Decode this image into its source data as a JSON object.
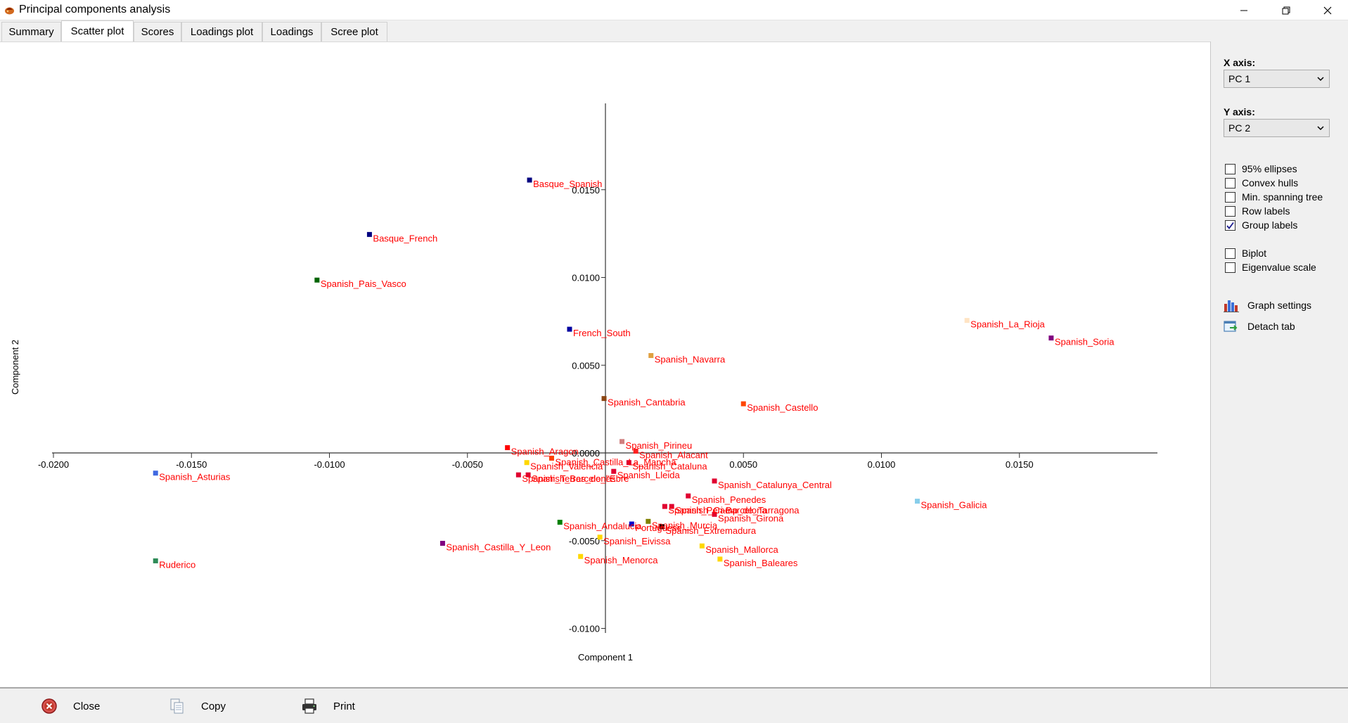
{
  "window": {
    "title": "Principal components analysis",
    "icon": "app-logo-icon"
  },
  "tabs": [
    {
      "label": "Summary",
      "active": false
    },
    {
      "label": "Scatter plot",
      "active": true
    },
    {
      "label": "Scores",
      "active": false
    },
    {
      "label": "Loadings plot",
      "active": false
    },
    {
      "label": "Loadings",
      "active": false
    },
    {
      "label": "Scree plot",
      "active": false
    }
  ],
  "side_panel": {
    "x_axis_label": "X axis:",
    "x_axis_value": "PC 1",
    "y_axis_label": "Y axis:",
    "y_axis_value": "PC 2",
    "options": [
      {
        "label": "95% ellipses",
        "checked": false
      },
      {
        "label": "Convex hulls",
        "checked": false
      },
      {
        "label": "Min. spanning tree",
        "checked": false
      },
      {
        "label": "Row labels",
        "checked": false
      },
      {
        "label": "Group labels",
        "checked": true
      },
      {
        "label": "Biplot",
        "checked": false
      },
      {
        "label": "Eigenvalue scale",
        "checked": false
      }
    ],
    "graph_settings_label": "Graph settings",
    "detach_tab_label": "Detach tab"
  },
  "bottom_bar": {
    "close_label": "Close",
    "copy_label": "Copy",
    "print_label": "Print"
  },
  "chart_data": {
    "type": "scatter",
    "xlabel": "Component 1",
    "ylabel": "Component 2",
    "xlim": [
      -0.02,
      0.02
    ],
    "ylim": [
      -0.01,
      0.015
    ],
    "xticks": [
      -0.02,
      -0.015,
      -0.01,
      -0.005,
      0.005,
      0.01,
      0.015
    ],
    "xtick_labels": [
      "-0.0200",
      "-0.0150",
      "-0.0100",
      "-0.0050",
      "0.0050",
      "0.0100",
      "0.0150"
    ],
    "yticks": [
      0.015,
      0.01,
      0.005,
      0.0,
      -0.005,
      -0.01
    ],
    "ytick_labels": [
      "0.0150",
      "0.0100",
      "0.0050",
      "0.0000",
      "-0.0050",
      "-0.0100"
    ],
    "label_color": "#ff0000",
    "points": [
      {
        "label": "Basque_Spanish",
        "x": -0.00275,
        "y": 0.01555,
        "color": "#000080"
      },
      {
        "label": "Basque_French",
        "x": -0.00855,
        "y": 0.01245,
        "color": "#000080"
      },
      {
        "label": "Spanish_Pais_Vasco",
        "x": -0.01045,
        "y": 0.00985,
        "color": "#006400"
      },
      {
        "label": "French_South",
        "x": -0.0013,
        "y": 0.00705,
        "color": "#0000a0"
      },
      {
        "label": "Spanish_Navarra",
        "x": 0.00165,
        "y": 0.00555,
        "color": "#e0a040"
      },
      {
        "label": "Spanish_Cantabria",
        "x": -5e-05,
        "y": 0.0031,
        "color": "#8b4513"
      },
      {
        "label": "Spanish_Castello",
        "x": 0.005,
        "y": 0.0028,
        "color": "#ff4500"
      },
      {
        "label": "Spanish_La_Rioja",
        "x": 0.0131,
        "y": 0.00755,
        "color": "#ffe4c4"
      },
      {
        "label": "Spanish_Soria",
        "x": 0.01615,
        "y": 0.00655,
        "color": "#800080"
      },
      {
        "label": "Spanish_Galicia",
        "x": 0.0113,
        "y": -0.00275,
        "color": "#87ceeb"
      },
      {
        "label": "Spanish_Pirineu",
        "x": 0.0006,
        "y": 0.00065,
        "color": "#d08080"
      },
      {
        "label": "Spanish_Alacant",
        "x": 0.0011,
        "y": 0.0001,
        "color": "#ff2020"
      },
      {
        "label": "Spanish_Cataluna",
        "x": 0.00085,
        "y": -0.00055,
        "color": "#e00030"
      },
      {
        "label": "Spanish_Lleida",
        "x": 0.0003,
        "y": -0.00105,
        "color": "#e00030"
      },
      {
        "label": "Spanish_Aragon",
        "x": -0.00355,
        "y": 0.0003,
        "color": "#ff0000"
      },
      {
        "label": "Spanish_Castilla_La_Mancha",
        "x": -0.00195,
        "y": -0.0003,
        "color": "#ff4000"
      },
      {
        "label": "Spanish_Valencia",
        "x": -0.00285,
        "y": -0.00055,
        "color": "#ffd700"
      },
      {
        "label": "Spanish_Terres_de_l'Ebre",
        "x": -0.00315,
        "y": -0.00125,
        "color": "#e00030"
      },
      {
        "label": "Spanish_Barcelones",
        "x": -0.0028,
        "y": -0.00125,
        "color": "#e00030"
      },
      {
        "label": "Spanish_Asturias",
        "x": -0.0163,
        "y": -0.00115,
        "color": "#4169e1"
      },
      {
        "label": "Spanish_Catalunya_Central",
        "x": 0.00395,
        "y": -0.0016,
        "color": "#e00030"
      },
      {
        "label": "Spanish_Penedes",
        "x": 0.003,
        "y": -0.00245,
        "color": "#e00030"
      },
      {
        "label": "Spanish_Peri-Barcelona",
        "x": 0.00215,
        "y": -0.00305,
        "color": "#e00030"
      },
      {
        "label": "Spanish_Camp_de_Tarragona",
        "x": 0.0024,
        "y": -0.00305,
        "color": "#e00030"
      },
      {
        "label": "Spanish_Girona",
        "x": 0.00395,
        "y": -0.0035,
        "color": "#e00030"
      },
      {
        "label": "Spanish_Murcia",
        "x": 0.00155,
        "y": -0.0039,
        "color": "#808000"
      },
      {
        "label": "Portuguese",
        "x": 0.00095,
        "y": -0.00405,
        "color": "#0000cd"
      },
      {
        "label": "Spanish_Extremadura",
        "x": 0.00205,
        "y": -0.0042,
        "color": "#000000"
      },
      {
        "label": "Spanish_Andalucia",
        "x": -0.00165,
        "y": -0.00395,
        "color": "#008000"
      },
      {
        "label": "Spanish_Eivissa",
        "x": -0.0002,
        "y": -0.0048,
        "color": "#ffd700"
      },
      {
        "label": "Spanish_Mallorca",
        "x": 0.0035,
        "y": -0.0053,
        "color": "#ffd700"
      },
      {
        "label": "Spanish_Baleares",
        "x": 0.00415,
        "y": -0.00605,
        "color": "#ffd700"
      },
      {
        "label": "Spanish_Menorca",
        "x": -0.0009,
        "y": -0.0059,
        "color": "#ffd700"
      },
      {
        "label": "Spanish_Castilla_Y_Leon",
        "x": -0.0059,
        "y": -0.00515,
        "color": "#800080"
      },
      {
        "label": "Ruderico",
        "x": -0.0163,
        "y": -0.00615,
        "color": "#2e8b57"
      }
    ]
  }
}
